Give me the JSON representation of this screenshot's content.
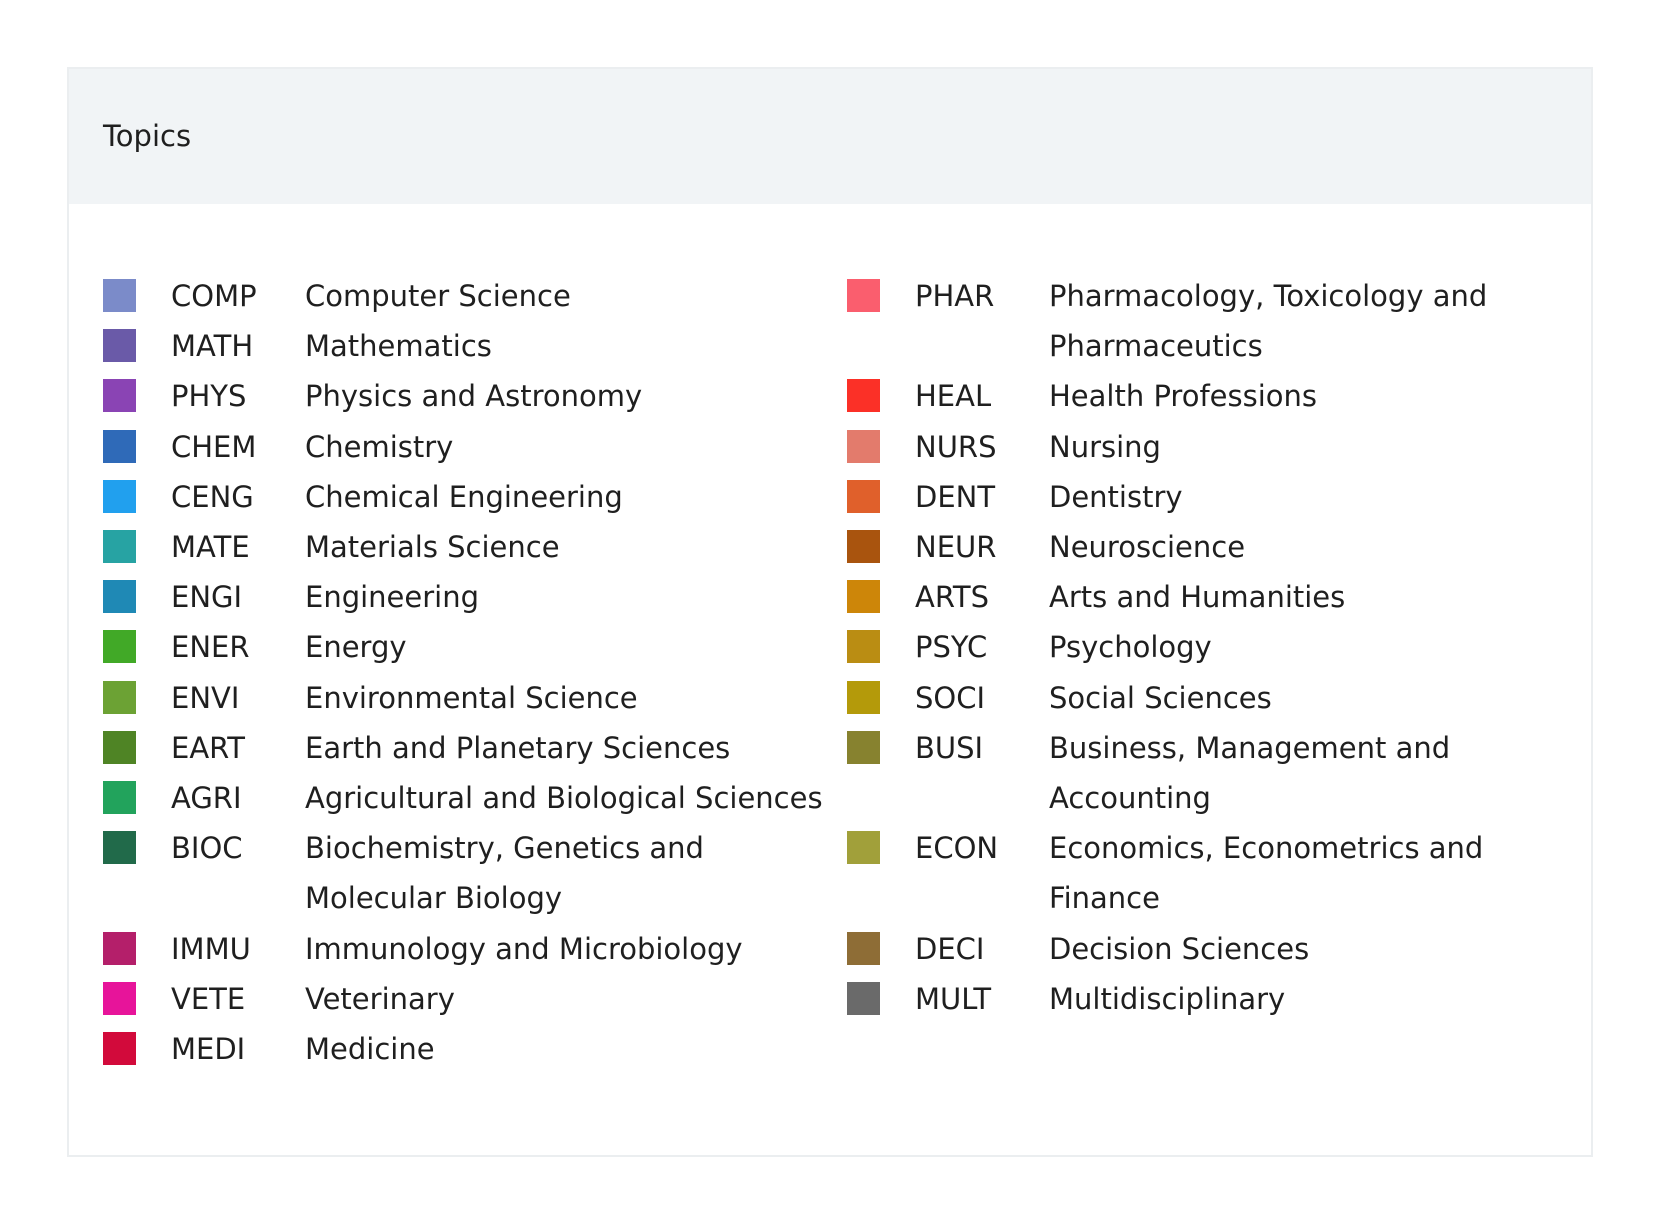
{
  "panel": {
    "title": "Topics"
  },
  "topics_left": [
    {
      "code": "COMP",
      "name": "Computer Science",
      "color": "#7b8bc9"
    },
    {
      "code": "MATH",
      "name": "Mathematics",
      "color": "#6a5aa8"
    },
    {
      "code": "PHYS",
      "name": "Physics and Astronomy",
      "color": "#8a44b4"
    },
    {
      "code": "CHEM",
      "name": "Chemistry",
      "color": "#2f6ab8"
    },
    {
      "code": "CENG",
      "name": "Chemical Engineering",
      "color": "#21a0ee"
    },
    {
      "code": "MATE",
      "name": "Materials Science",
      "color": "#27a3a3"
    },
    {
      "code": "ENGI",
      "name": "Engineering",
      "color": "#1f89b5"
    },
    {
      "code": "ENER",
      "name": "Energy",
      "color": "#41a927"
    },
    {
      "code": "ENVI",
      "name": "Environmental Science",
      "color": "#6ca234"
    },
    {
      "code": "EART",
      "name": "Earth and Planetary Sciences",
      "color": "#4f8425"
    },
    {
      "code": "AGRI",
      "name": "Agricultural and Biological Sciences",
      "color": "#22a35c"
    },
    {
      "code": "BIOC",
      "name": "Biochemistry, Genetics and Molecular Biology",
      "color": "#216a4a"
    },
    {
      "code": "IMMU",
      "name": "Immunology and Microbiology",
      "color": "#b41f6a"
    },
    {
      "code": "VETE",
      "name": "Veterinary",
      "color": "#e7149a"
    },
    {
      "code": "MEDI",
      "name": "Medicine",
      "color": "#d20a3b"
    }
  ],
  "topics_right": [
    {
      "code": "PHAR",
      "name": "Pharmacology, Toxicology and Pharmaceutics",
      "color": "#fa5e6e"
    },
    {
      "code": "HEAL",
      "name": "Health Professions",
      "color": "#fb3027"
    },
    {
      "code": "NURS",
      "name": "Nursing",
      "color": "#e37b6c"
    },
    {
      "code": "DENT",
      "name": "Dentistry",
      "color": "#e0602b"
    },
    {
      "code": "NEUR",
      "name": "Neuroscience",
      "color": "#a9540e"
    },
    {
      "code": "ARTS",
      "name": "Arts and Humanities",
      "color": "#cd8609"
    },
    {
      "code": "PSYC",
      "name": "Psychology",
      "color": "#ba8d13"
    },
    {
      "code": "SOCI",
      "name": "Social Sciences",
      "color": "#b49a0a"
    },
    {
      "code": "BUSI",
      "name": "Business, Management and Accounting",
      "color": "#87822f"
    },
    {
      "code": "ECON",
      "name": "Economics, Econometrics and Finance",
      "color": "#a1a03a"
    },
    {
      "code": "DECI",
      "name": "Decision Sciences",
      "color": "#8e6d36"
    },
    {
      "code": "MULT",
      "name": "Multidisciplinary",
      "color": "#6a6a6a"
    }
  ]
}
